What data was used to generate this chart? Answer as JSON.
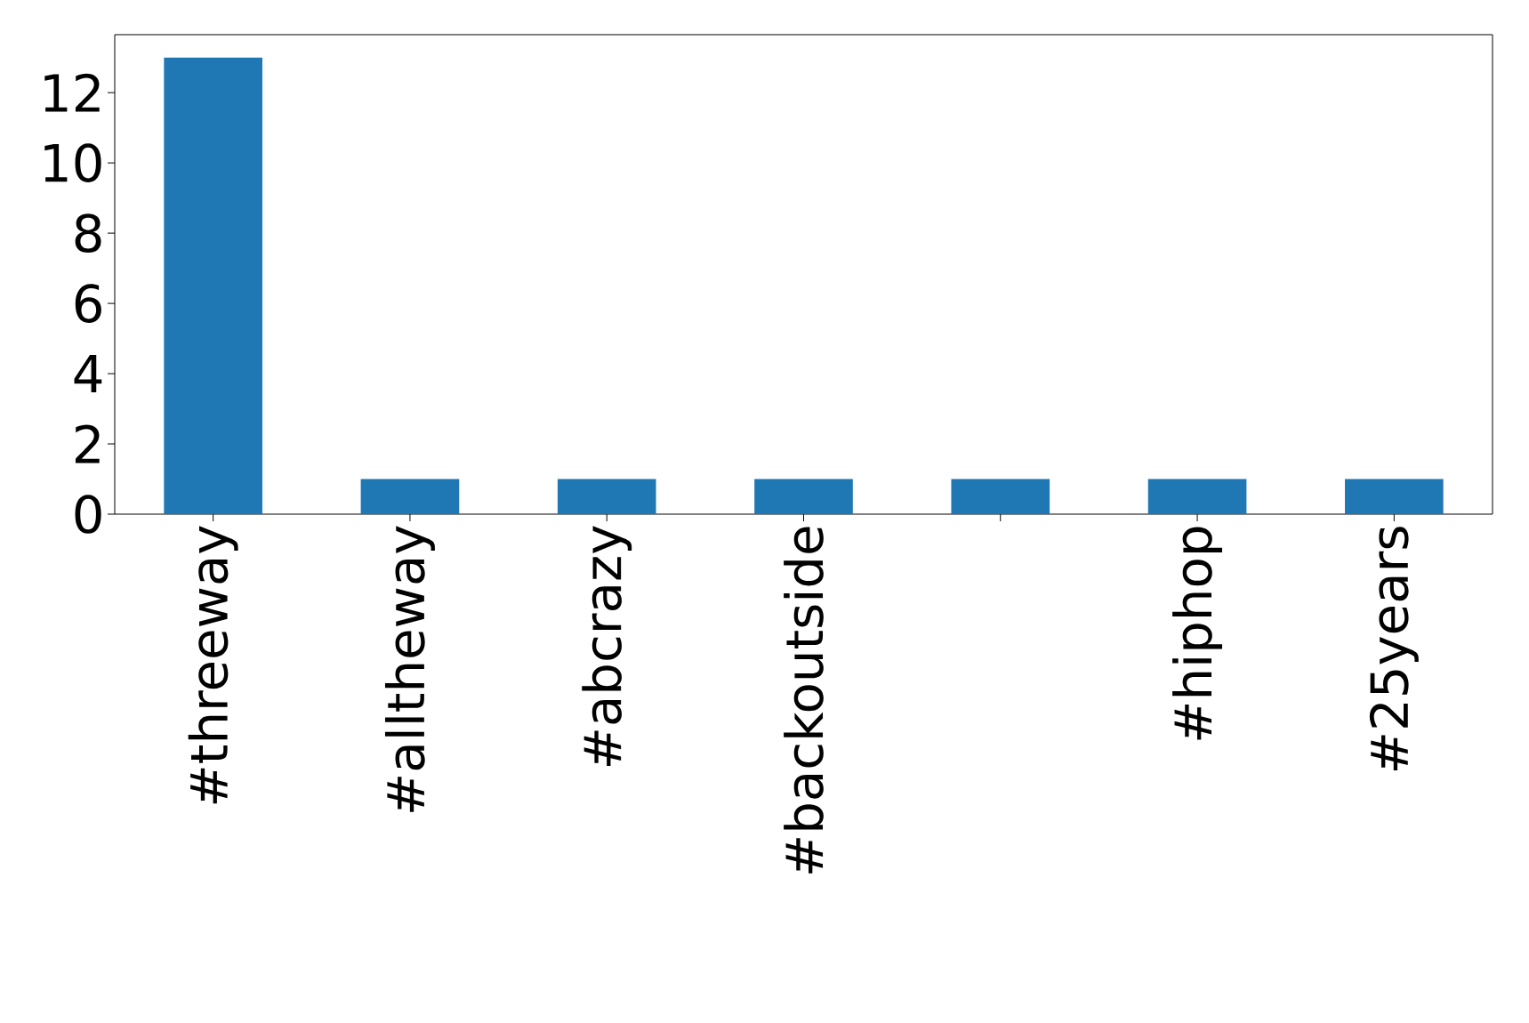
{
  "chart_data": {
    "type": "bar",
    "categories": [
      "#threeway",
      "#alltheway",
      "#abcrazy",
      "#backoutside",
      null,
      "#hiphop",
      "#25years"
    ],
    "values": [
      13,
      1,
      1,
      1,
      1,
      1,
      1
    ],
    "color": "#1f77b4",
    "ylim": [
      0,
      13.65
    ],
    "yticks": [
      0,
      2,
      4,
      6,
      8,
      10,
      12
    ]
  }
}
